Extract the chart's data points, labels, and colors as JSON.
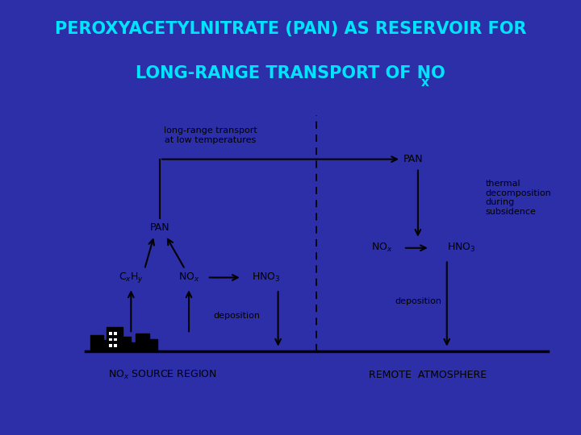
{
  "title_line1": "PEROXYACETYLNITRATE (PAN) AS RESERVOIR FOR",
  "title_line2": "LONG-RANGE TRANSPORT OF NO",
  "title_subscript": "x",
  "bg_color": "#2d2fa8",
  "title_color": "#00e5ff",
  "box_bg": "#ffffff",
  "title_fontsize": 15,
  "diagram_fontsize": 9,
  "diagram_fontsize_small": 8
}
